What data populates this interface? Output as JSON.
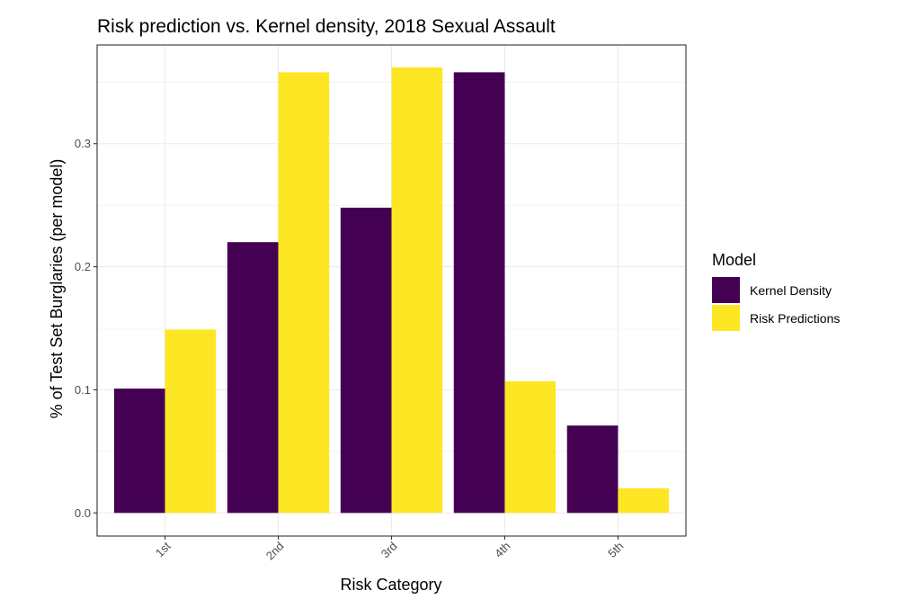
{
  "chart_data": {
    "type": "bar",
    "title": "Risk prediction vs. Kernel density, 2018 Sexual Assault",
    "xlabel": "Risk Category",
    "ylabel": "% of Test Set Burglaries (per model)",
    "categories": [
      "1st",
      "2nd",
      "3rd",
      "4th",
      "5th"
    ],
    "series": [
      {
        "name": "Kernel Density",
        "color": "#440154",
        "values": [
          0.101,
          0.22,
          0.248,
          0.358,
          0.071
        ]
      },
      {
        "name": "Risk Predictions",
        "color": "#FDE725",
        "values": [
          0.149,
          0.358,
          0.362,
          0.107,
          0.02
        ]
      }
    ],
    "yticks": [
      0.0,
      0.1,
      0.2,
      0.3
    ],
    "ytick_labels": [
      "0.0",
      "0.1",
      "0.2",
      "0.3"
    ],
    "ylim": [
      -0.0188,
      0.3802
    ],
    "legend": {
      "title": "Model",
      "position": "right"
    },
    "grid": true,
    "x_tick_rotation": "45 degrees"
  }
}
